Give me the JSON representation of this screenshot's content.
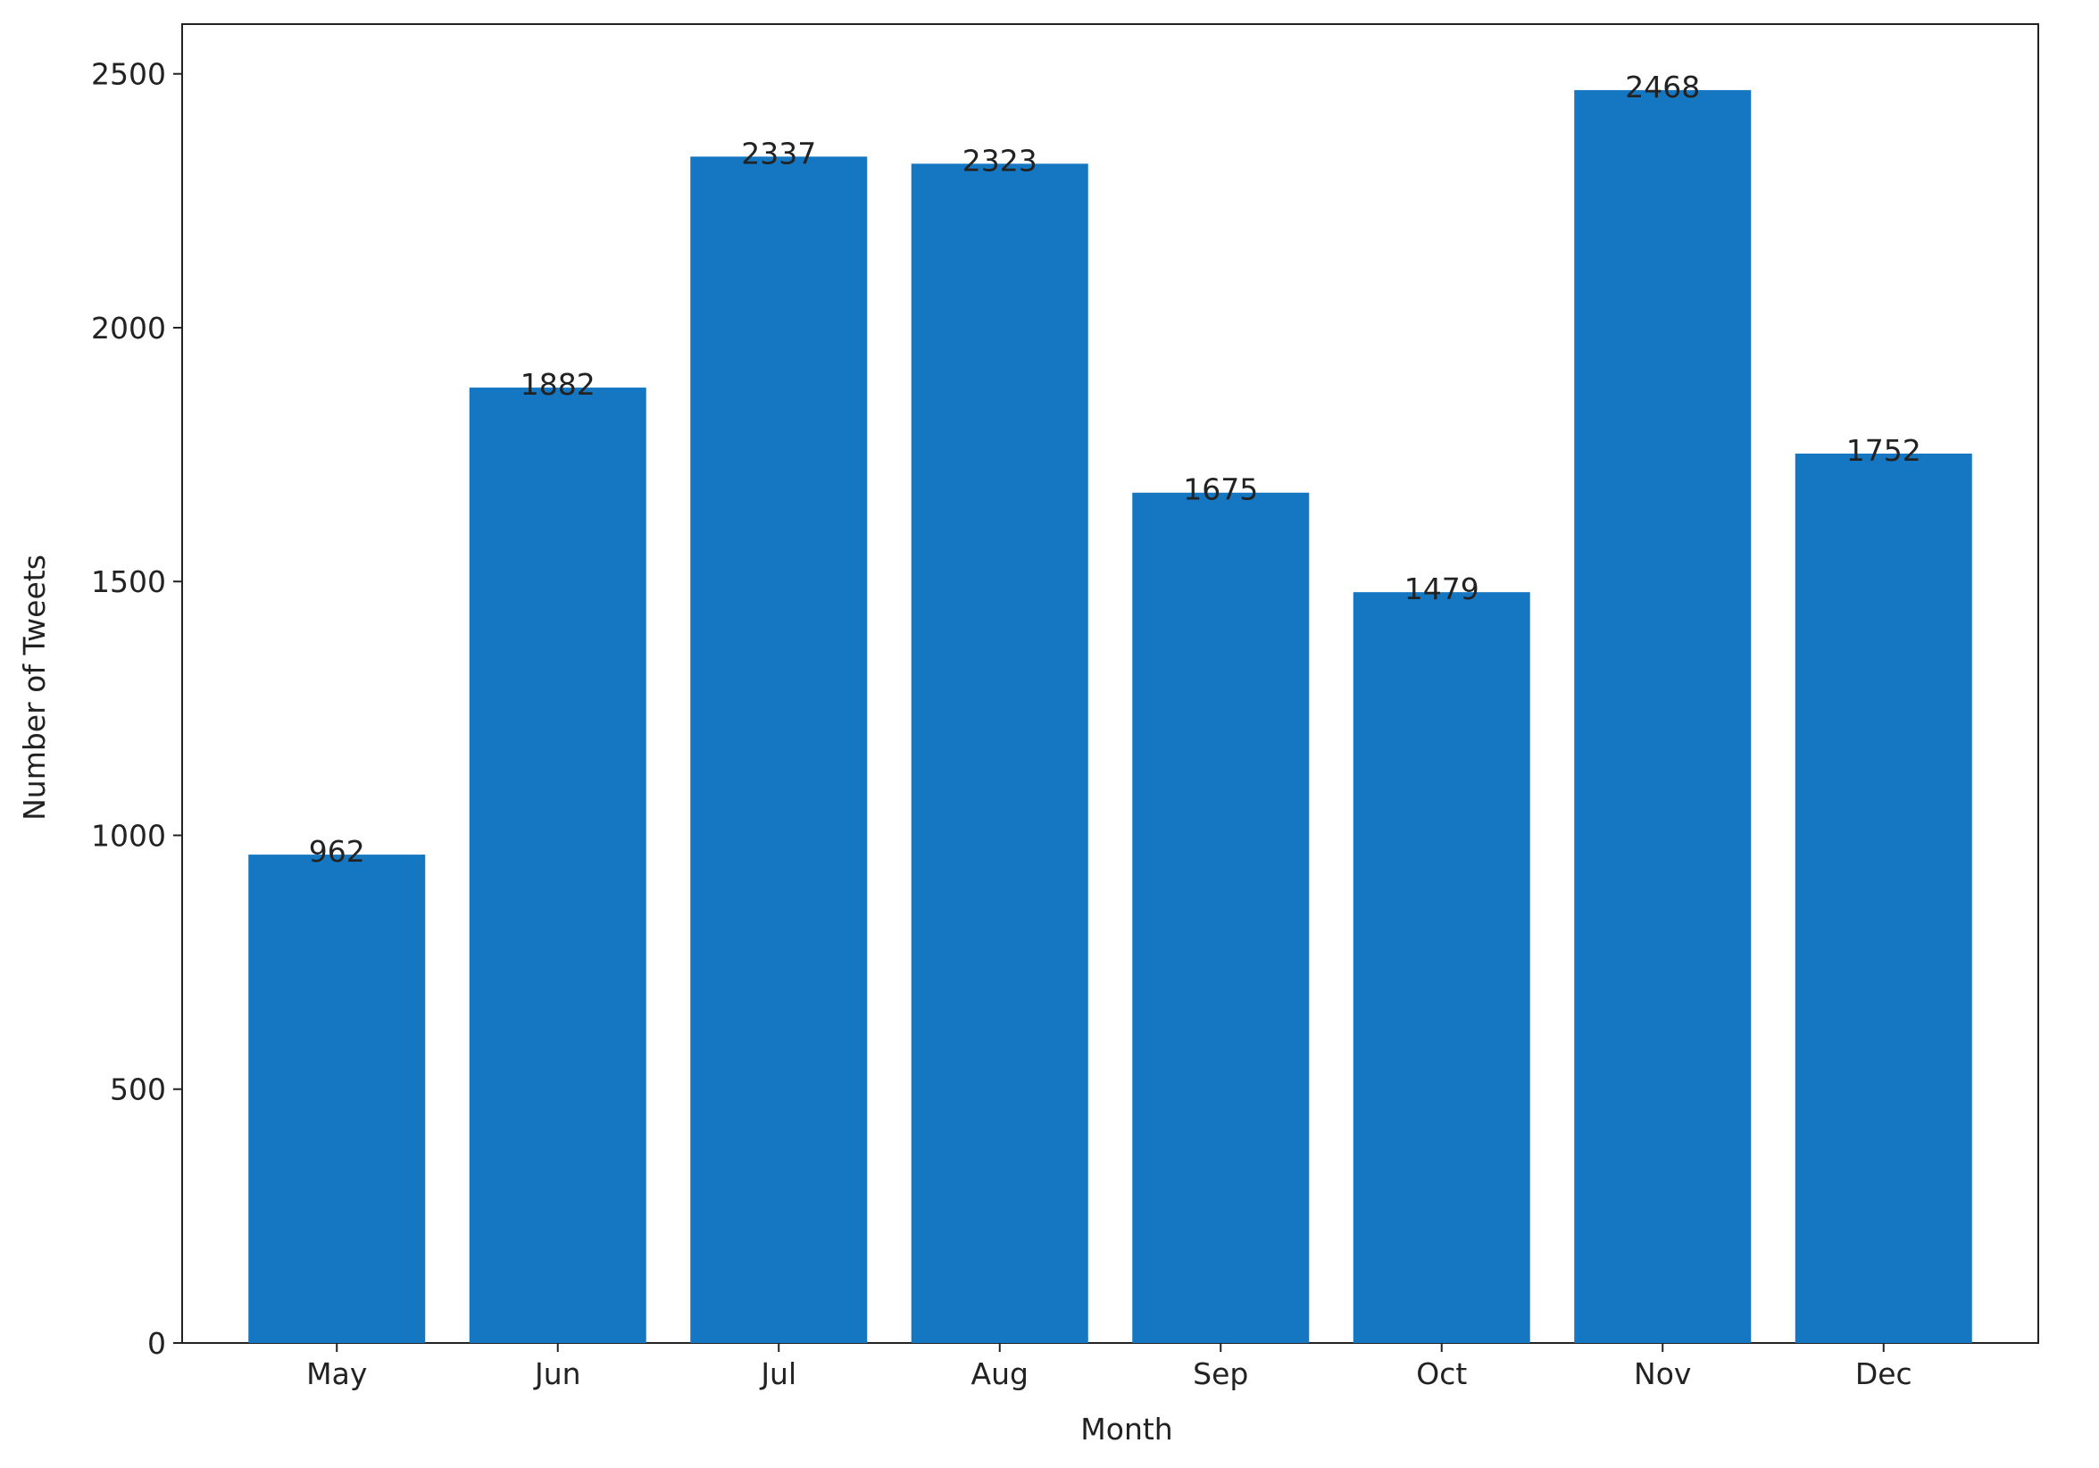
{
  "chart_data": {
    "type": "bar",
    "x_label": "Month",
    "y_label": "Number of Tweets",
    "categories": [
      "May",
      "Jun",
      "Jul",
      "Aug",
      "Sep",
      "Oct",
      "Nov",
      "Dec"
    ],
    "values": [
      962,
      1882,
      2337,
      2323,
      1675,
      1479,
      2468,
      1752
    ],
    "color": "#1577c1",
    "ylim": [
      0,
      2598
    ],
    "yticks": [
      0,
      500,
      1000,
      1500,
      2000,
      2500
    ],
    "grid": false,
    "data_labels": true
  }
}
